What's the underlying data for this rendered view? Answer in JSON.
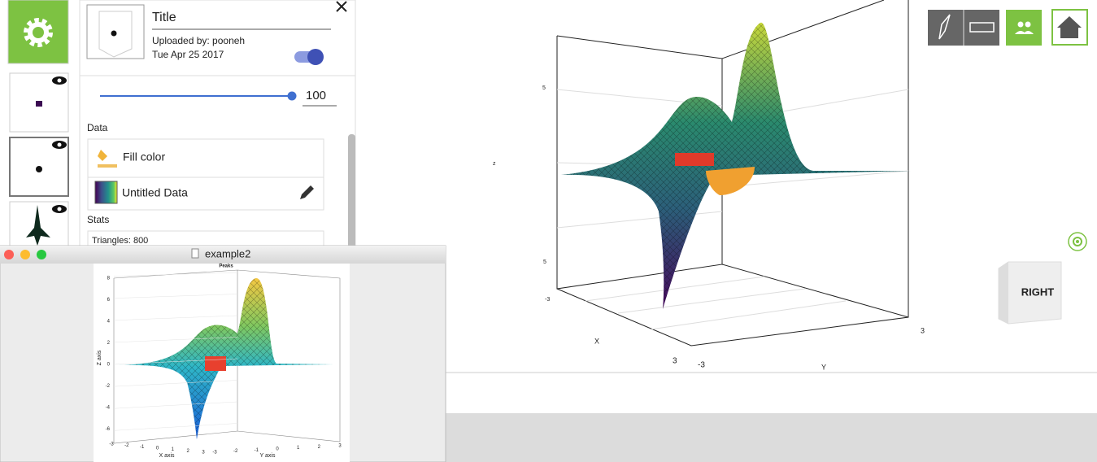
{
  "panel": {
    "title": "Title",
    "uploaded_by": "Uploaded by: pooneh",
    "date": "Tue Apr 25 2017",
    "opacity": 100,
    "data_heading": "Data",
    "fill_color": "Fill color",
    "data_name": "Untitled Data",
    "stats_heading": "Stats",
    "triangles": "Triangles: 800"
  },
  "viewer": {
    "z_top": "5",
    "z_label": "z",
    "z_bottom": "5",
    "x_min": "-3",
    "x_label": "X",
    "x_max": "3",
    "y_min": "-3",
    "y_label": "Y",
    "y_max": "3",
    "orientation": "RIGHT"
  },
  "window": {
    "title": "example2",
    "plot": {
      "title": "Peaks",
      "z_label": "Z axis",
      "x_label": "X axis",
      "y_label": "Y axis",
      "z_ticks": [
        8,
        6,
        4,
        2,
        0,
        -2,
        -4,
        -6
      ],
      "x_ticks": [
        -3,
        -2,
        -1,
        0,
        1,
        2,
        3
      ],
      "y_ticks": [
        -3,
        -2,
        -1,
        0,
        1,
        2,
        3
      ]
    }
  }
}
